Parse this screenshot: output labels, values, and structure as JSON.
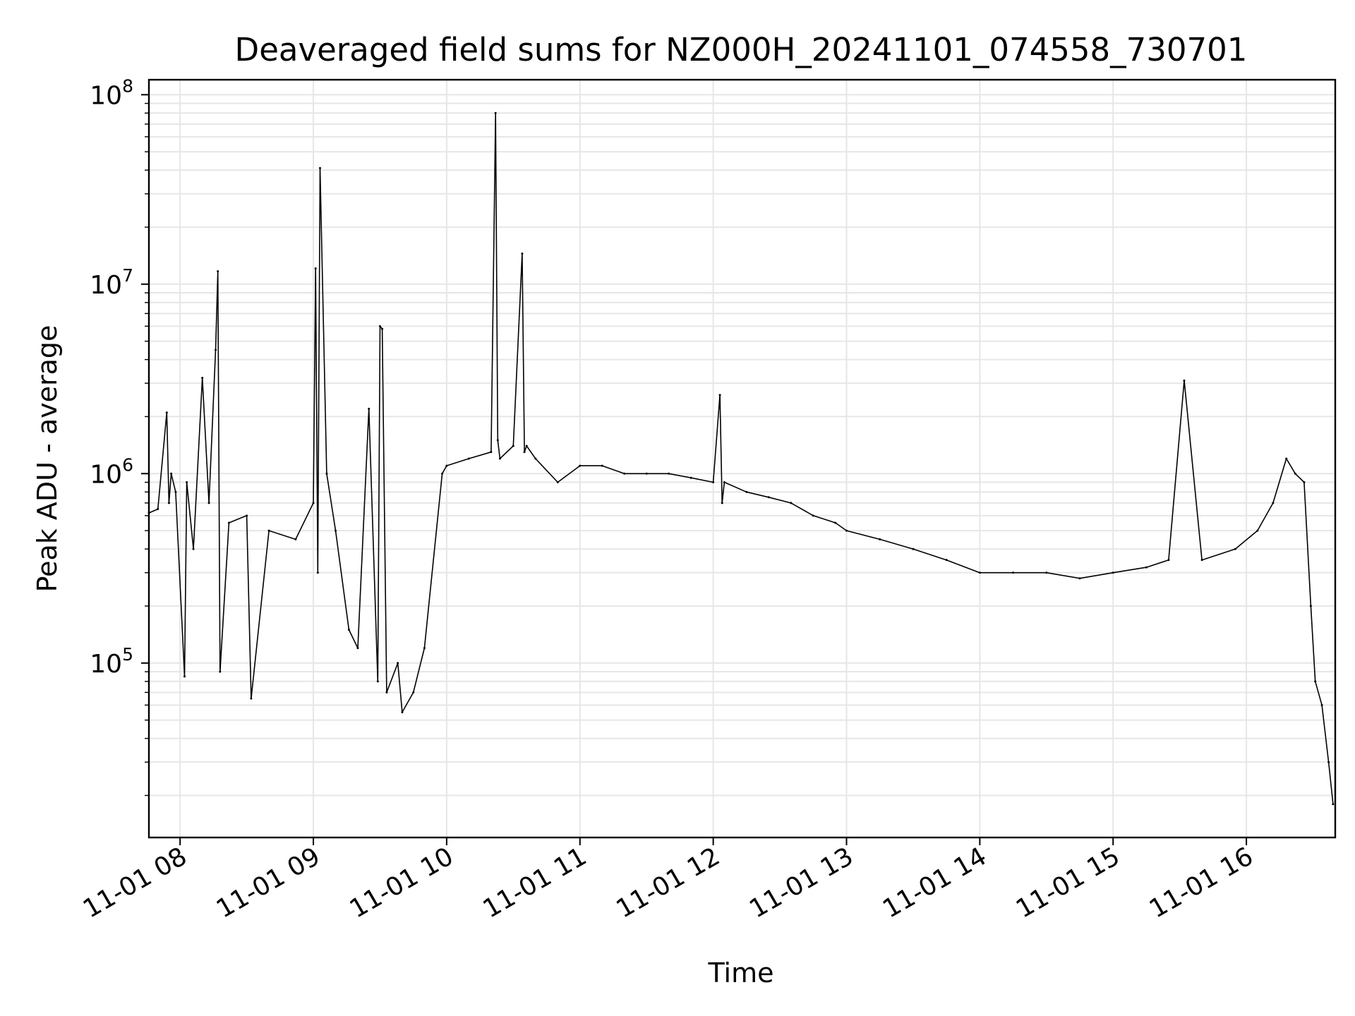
{
  "chart_data": {
    "type": "line",
    "title": "Deaveraged field sums for NZ000H_20241101_074558_730701",
    "xlabel": "Time",
    "ylabel": "Peak ADU - average",
    "yscale": "log",
    "ylim": [
      12000,
      120000000
    ],
    "xlim": [
      "2024-11-01 07:45:58",
      "2024-11-01 16:40:00"
    ],
    "grid": true,
    "line_color": "#000000",
    "x_ticks": [
      {
        "label": "11-01 08",
        "value": "2024-11-01 08:00"
      },
      {
        "label": "11-01 09",
        "value": "2024-11-01 09:00"
      },
      {
        "label": "11-01 10",
        "value": "2024-11-01 10:00"
      },
      {
        "label": "11-01 11",
        "value": "2024-11-01 11:00"
      },
      {
        "label": "11-01 12",
        "value": "2024-11-01 12:00"
      },
      {
        "label": "11-01 13",
        "value": "2024-11-01 13:00"
      },
      {
        "label": "11-01 14",
        "value": "2024-11-01 14:00"
      },
      {
        "label": "11-01 15",
        "value": "2024-11-01 15:00"
      },
      {
        "label": "11-01 16",
        "value": "2024-11-01 16:00"
      }
    ],
    "y_ticks": [
      {
        "base": "10",
        "exp": "5",
        "value": 100000
      },
      {
        "base": "10",
        "exp": "6",
        "value": 1000000
      },
      {
        "base": "10",
        "exp": "7",
        "value": 10000000
      },
      {
        "base": "10",
        "exp": "8",
        "value": 100000000
      }
    ],
    "series": [
      {
        "x": [
          "2024-11-01 07:46",
          "2024-11-01 07:50",
          "2024-11-01 07:54",
          "2024-11-01 07:55",
          "2024-11-01 07:56",
          "2024-11-01 07:58",
          "2024-11-01 08:02",
          "2024-11-01 08:03",
          "2024-11-01 08:06",
          "2024-11-01 08:10",
          "2024-11-01 08:13",
          "2024-11-01 08:16",
          "2024-11-01 08:17",
          "2024-11-01 08:18",
          "2024-11-01 08:22",
          "2024-11-01 08:30",
          "2024-11-01 08:32",
          "2024-11-01 08:40",
          "2024-11-01 08:52",
          "2024-11-01 09:00",
          "2024-11-01 09:01",
          "2024-11-01 09:02",
          "2024-11-01 09:03",
          "2024-11-01 09:06",
          "2024-11-01 09:10",
          "2024-11-01 09:16",
          "2024-11-01 09:20",
          "2024-11-01 09:25",
          "2024-11-01 09:29",
          "2024-11-01 09:30",
          "2024-11-01 09:31",
          "2024-11-01 09:33",
          "2024-11-01 09:38",
          "2024-11-01 09:40",
          "2024-11-01 09:45",
          "2024-11-01 09:50",
          "2024-11-01 09:58",
          "2024-11-01 10:00",
          "2024-11-01 10:10",
          "2024-11-01 10:20",
          "2024-11-01 10:22",
          "2024-11-01 10:23",
          "2024-11-01 10:24",
          "2024-11-01 10:30",
          "2024-11-01 10:34",
          "2024-11-01 10:35",
          "2024-11-01 10:36",
          "2024-11-01 10:40",
          "2024-11-01 10:50",
          "2024-11-01 11:00",
          "2024-11-01 11:10",
          "2024-11-01 11:20",
          "2024-11-01 11:30",
          "2024-11-01 11:40",
          "2024-11-01 11:50",
          "2024-11-01 12:00",
          "2024-11-01 12:03",
          "2024-11-01 12:04",
          "2024-11-01 12:05",
          "2024-11-01 12:15",
          "2024-11-01 12:25",
          "2024-11-01 12:35",
          "2024-11-01 12:45",
          "2024-11-01 12:55",
          "2024-11-01 13:00",
          "2024-11-01 13:15",
          "2024-11-01 13:30",
          "2024-11-01 13:45",
          "2024-11-01 14:00",
          "2024-11-01 14:15",
          "2024-11-01 14:30",
          "2024-11-01 14:45",
          "2024-11-01 15:00",
          "2024-11-01 15:15",
          "2024-11-01 15:25",
          "2024-11-01 15:32",
          "2024-11-01 15:40",
          "2024-11-01 15:55",
          "2024-11-01 16:05",
          "2024-11-01 16:12",
          "2024-11-01 16:18",
          "2024-11-01 16:22",
          "2024-11-01 16:26",
          "2024-11-01 16:29",
          "2024-11-01 16:31",
          "2024-11-01 16:34",
          "2024-11-01 16:37",
          "2024-11-01 16:39"
        ],
        "values": [
          620000,
          650000,
          2100000,
          700000,
          1000000,
          800000,
          85000,
          900000,
          400000,
          3200000,
          700000,
          4500000,
          11700000,
          90000,
          550000,
          600000,
          65000,
          500000,
          450000,
          700000,
          12100000,
          300000,
          41000000,
          1000000,
          500000,
          150000,
          120000,
          2200000,
          80000,
          6000000,
          5800000,
          70000,
          100000,
          55000,
          70000,
          120000,
          1000000,
          1100000,
          1200000,
          1300000,
          80000000,
          1500000,
          1200000,
          1400000,
          14500000,
          1300000,
          1400000,
          1200000,
          900000,
          1100000,
          1100000,
          1000000,
          1000000,
          1000000,
          950000,
          900000,
          2600000,
          700000,
          900000,
          800000,
          750000,
          700000,
          600000,
          550000,
          500000,
          450000,
          400000,
          350000,
          300000,
          300000,
          300000,
          280000,
          300000,
          320000,
          350000,
          3100000,
          350000,
          400000,
          500000,
          700000,
          1200000,
          1000000,
          900000,
          200000,
          80000,
          60000,
          30000,
          18000
        ]
      }
    ]
  }
}
